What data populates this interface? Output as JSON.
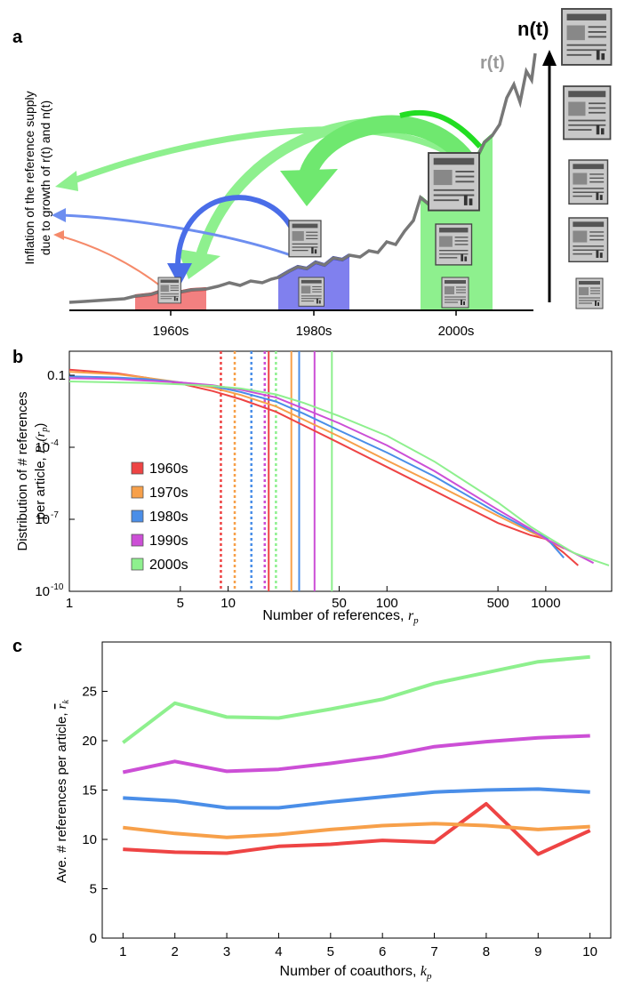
{
  "colors": {
    "1960s": "#ee4444",
    "1970s": "#f7a04a",
    "1980s": "#4a8ee8",
    "1990s": "#cc4fd6",
    "2000s": "#8ef08e",
    "supply_line": "#777777"
  },
  "panel_a": {
    "letter": "a",
    "ylabel_line1": "Inflation of the reference supply",
    "ylabel_line2": "due to growth of r(t) and n(t)",
    "label_nt": "n(t)",
    "label_rt": "r(t)",
    "decades": [
      "1960s",
      "1980s",
      "2000s"
    ],
    "icons": [
      "newspaper-icon"
    ]
  },
  "chart_data": [
    {
      "panel": "b",
      "type": "line",
      "xlabel": "Number of references, r_p",
      "xlabel_main": "Number of references, ",
      "xlabel_var": "r",
      "xlabel_sub": "p",
      "ylabel_line1": "Distribution of # references",
      "ylabel_line2_main": "per article, ",
      "ylabel_line2_var": "P",
      "ylabel_line2_sub": "y",
      "ylabel_line2_tail": "(r",
      "ylabel_line2_sub2": "p",
      "ylabel_line2_end": ")",
      "x_scale": "log",
      "y_scale": "log",
      "xlim": [
        1,
        2600
      ],
      "ylim": [
        1e-10,
        1
      ],
      "x_ticks": [
        1,
        5,
        10,
        50,
        100,
        500,
        1000
      ],
      "x_tick_labels": [
        "1",
        "5",
        "10",
        "50",
        "100",
        "500",
        "1000"
      ],
      "y_ticks": [
        1e-10,
        1e-07,
        0.0001,
        0.1
      ],
      "y_tick_labels": [
        "10",
        "10",
        "10",
        "0.1"
      ],
      "y_tick_exponents": [
        "-10",
        "-7",
        "-4",
        ""
      ],
      "legend_position": "center-left",
      "series": [
        {
          "name": "1960s",
          "mean": 9,
          "median": 18,
          "points": [
            [
              1,
              0.17
            ],
            [
              2,
              0.12
            ],
            [
              3,
              0.08
            ],
            [
              5,
              0.045
            ],
            [
              8,
              0.022
            ],
            [
              12,
              0.01
            ],
            [
              20,
              0.003
            ],
            [
              30,
              0.0008
            ],
            [
              50,
              0.00015
            ],
            [
              100,
              1.5e-05
            ],
            [
              200,
              1.5e-06
            ],
            [
              500,
              7e-08
            ],
            [
              800,
              2.2e-08
            ],
            [
              1000,
              1.5e-08
            ],
            [
              1300,
              4e-09
            ],
            [
              1600,
              1.2e-09
            ]
          ]
        },
        {
          "name": "1970s",
          "mean": 11,
          "median": 25,
          "points": [
            [
              1,
              0.14
            ],
            [
              2,
              0.11
            ],
            [
              3,
              0.08
            ],
            [
              5,
              0.05
            ],
            [
              8,
              0.03
            ],
            [
              12,
              0.015
            ],
            [
              20,
              0.005
            ],
            [
              30,
              0.0014
            ],
            [
              50,
              0.00028
            ],
            [
              100,
              2.8e-05
            ],
            [
              200,
              3e-06
            ],
            [
              500,
              1.4e-07
            ],
            [
              800,
              3e-08
            ],
            [
              1000,
              1.5e-08
            ],
            [
              1300,
              6e-09
            ]
          ]
        },
        {
          "name": "1980s",
          "mean": 14,
          "median": 28,
          "points": [
            [
              1,
              0.09
            ],
            [
              2,
              0.08
            ],
            [
              3,
              0.07
            ],
            [
              5,
              0.05
            ],
            [
              8,
              0.035
            ],
            [
              12,
              0.02
            ],
            [
              20,
              0.008
            ],
            [
              30,
              0.0025
            ],
            [
              50,
              0.0005
            ],
            [
              100,
              6e-05
            ],
            [
              200,
              6e-06
            ],
            [
              500,
              1.8e-07
            ],
            [
              800,
              3.5e-08
            ],
            [
              1000,
              1.8e-08
            ],
            [
              1300,
              2.5e-09
            ]
          ]
        },
        {
          "name": "1990s",
          "mean": 17,
          "median": 35,
          "points": [
            [
              1,
              0.075
            ],
            [
              2,
              0.07
            ],
            [
              3,
              0.06
            ],
            [
              5,
              0.05
            ],
            [
              8,
              0.038
            ],
            [
              12,
              0.025
            ],
            [
              20,
              0.012
            ],
            [
              30,
              0.004
            ],
            [
              50,
              0.001
            ],
            [
              100,
              0.00012
            ],
            [
              200,
              1e-05
            ],
            [
              500,
              2.5e-07
            ],
            [
              800,
              4e-08
            ],
            [
              1000,
              1.5e-08
            ],
            [
              1500,
              4e-09
            ],
            [
              2000,
              1.5e-09
            ]
          ]
        },
        {
          "name": "2000s",
          "mean": 20,
          "median": 45,
          "points": [
            [
              1,
              0.055
            ],
            [
              2,
              0.05
            ],
            [
              3,
              0.048
            ],
            [
              5,
              0.042
            ],
            [
              8,
              0.036
            ],
            [
              12,
              0.028
            ],
            [
              20,
              0.016
            ],
            [
              30,
              0.007
            ],
            [
              50,
              0.002
            ],
            [
              100,
              0.0003
            ],
            [
              200,
              2.5e-05
            ],
            [
              500,
              5e-07
            ],
            [
              800,
              5e-08
            ],
            [
              1000,
              2e-08
            ],
            [
              1500,
              4e-09
            ],
            [
              2000,
              2e-09
            ],
            [
              2500,
              1.2e-09
            ]
          ]
        }
      ]
    },
    {
      "panel": "c",
      "type": "line",
      "xlabel_main": "Number of coauthors, ",
      "xlabel_var": "k",
      "xlabel_sub": "p",
      "ylabel_main": "Ave. # references per article, ",
      "ylabel_var": "r",
      "ylabel_sub": "k",
      "xlim": [
        0.6,
        10.4
      ],
      "ylim": [
        0,
        30
      ],
      "x": [
        1,
        2,
        3,
        4,
        5,
        6,
        7,
        8,
        9,
        10
      ],
      "x_tick_labels": [
        "1",
        "2",
        "3",
        "4",
        "5",
        "6",
        "7",
        "8",
        "9",
        "10"
      ],
      "y_ticks": [
        0,
        5,
        10,
        15,
        20,
        25
      ],
      "y_tick_labels": [
        "0",
        "5",
        "10",
        "15",
        "20",
        "25"
      ],
      "series": [
        {
          "name": "1960s",
          "values": [
            9.0,
            8.7,
            8.6,
            9.3,
            9.5,
            9.9,
            9.7,
            13.6,
            8.5,
            10.9
          ]
        },
        {
          "name": "1970s",
          "values": [
            11.2,
            10.6,
            10.2,
            10.5,
            11.0,
            11.4,
            11.6,
            11.4,
            11.0,
            11.3
          ]
        },
        {
          "name": "1980s",
          "values": [
            14.2,
            13.9,
            13.2,
            13.2,
            13.8,
            14.3,
            14.8,
            15.0,
            15.1,
            14.8
          ]
        },
        {
          "name": "1990s",
          "values": [
            16.8,
            17.9,
            16.9,
            17.1,
            17.7,
            18.4,
            19.4,
            19.9,
            20.3,
            20.5
          ]
        },
        {
          "name": "2000s",
          "values": [
            19.8,
            23.8,
            22.4,
            22.3,
            23.2,
            24.2,
            25.8,
            26.9,
            28.0,
            28.5
          ]
        }
      ]
    }
  ],
  "panel_labels": {
    "b": "b",
    "c": "c"
  }
}
